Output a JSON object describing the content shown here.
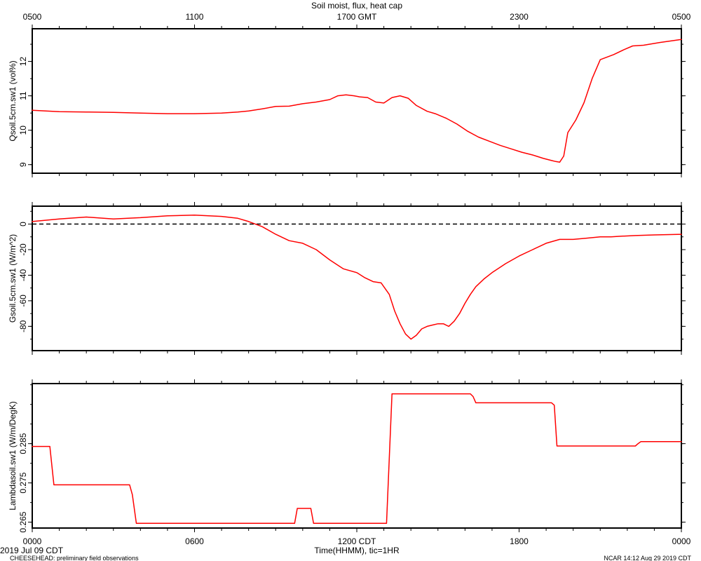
{
  "title": "Soil moist, flux, heat cap",
  "top_axis": {
    "ticks": [
      {
        "t": 0,
        "label": "0500"
      },
      {
        "t": 6,
        "label": "1100"
      },
      {
        "t": 12,
        "label": "1700 GMT"
      },
      {
        "t": 18,
        "label": "2300"
      },
      {
        "t": 24,
        "label": "0500"
      }
    ]
  },
  "bottom_axis": {
    "title": "Time(HHMM), tic=1HR",
    "ticks": [
      {
        "t": 0,
        "label": "0000"
      },
      {
        "t": 6,
        "label": "0600"
      },
      {
        "t": 12,
        "label": "1200 CDT"
      },
      {
        "t": 18,
        "label": "1800"
      },
      {
        "t": 24,
        "label": "0000"
      }
    ]
  },
  "footer": {
    "date": "2019 Jul 09 CDT",
    "project": "CHEESEHEAD: preliminary field observations",
    "credit": "NCAR 14:12 Aug 29 2019 CDT"
  },
  "colors": {
    "series": "#ff0000",
    "axis": "#000000"
  },
  "chart_data": [
    {
      "type": "line",
      "ylabel": "Qsoil.5cm.sw1  (vol%)",
      "xlim": [
        0,
        24
      ],
      "ylim": [
        8.75,
        12.95
      ],
      "yticks": [
        {
          "v": 9,
          "label": "9"
        },
        {
          "v": 10,
          "label": "10"
        },
        {
          "v": 11,
          "label": "11"
        },
        {
          "v": 12,
          "label": "12"
        }
      ],
      "x": [
        0,
        1,
        2,
        3,
        4,
        5,
        6,
        7,
        7.6,
        8,
        8.5,
        9,
        9.5,
        10,
        10.5,
        11,
        11.3,
        11.6,
        11.9,
        12.1,
        12.4,
        12.7,
        13,
        13.3,
        13.6,
        13.9,
        14.2,
        14.6,
        14.9,
        15.3,
        15.7,
        16.1,
        16.5,
        16.9,
        17.3,
        17.7,
        18.1,
        18.5,
        18.9,
        19.2,
        19.35,
        19.5,
        19.65,
        19.8,
        20.1,
        20.4,
        20.7,
        21.0,
        21.5,
        21.9,
        22.2,
        22.6,
        23.2,
        24
      ],
      "values": [
        10.58,
        10.54,
        10.53,
        10.52,
        10.5,
        10.48,
        10.48,
        10.5,
        10.53,
        10.56,
        10.62,
        10.69,
        10.7,
        10.77,
        10.82,
        10.89,
        11.0,
        11.03,
        11.0,
        10.97,
        10.95,
        10.82,
        10.79,
        10.95,
        11.0,
        10.93,
        10.72,
        10.55,
        10.48,
        10.35,
        10.18,
        9.97,
        9.8,
        9.68,
        9.56,
        9.46,
        9.36,
        9.28,
        9.18,
        9.12,
        9.09,
        9.07,
        9.25,
        9.93,
        10.3,
        10.8,
        11.5,
        12.05,
        12.2,
        12.35,
        12.45,
        12.47,
        12.55,
        12.64
      ]
    },
    {
      "type": "line",
      "ylabel": "Gsoil.5cm.sw1  (W/m^2)",
      "xlim": [
        0,
        24
      ],
      "ylim": [
        -99,
        14
      ],
      "zero_line": true,
      "yticks": [
        {
          "v": 0,
          "label": "0"
        },
        {
          "v": -20,
          "label": "-20"
        },
        {
          "v": -40,
          "label": "-40"
        },
        {
          "v": -60,
          "label": "-60"
        },
        {
          "v": -80,
          "label": "-80"
        }
      ],
      "x": [
        0,
        1,
        2,
        3,
        4,
        5,
        6,
        7,
        7.6,
        8,
        8.5,
        9,
        9.5,
        10,
        10.5,
        11,
        11.5,
        12,
        12.3,
        12.6,
        12.9,
        13.2,
        13.4,
        13.6,
        13.8,
        14.0,
        14.2,
        14.4,
        14.6,
        14.8,
        15.0,
        15.2,
        15.4,
        15.6,
        15.8,
        16.0,
        16.2,
        16.4,
        16.7,
        17.0,
        17.5,
        18.0,
        18.5,
        19.0,
        19.5,
        20.0,
        20.5,
        21.0,
        21.4,
        21.8,
        22.3,
        23.0,
        24
      ],
      "values": [
        2,
        4,
        5.5,
        4,
        5,
        6.5,
        7,
        6,
        4.5,
        2,
        -2,
        -8,
        -13,
        -15,
        -20,
        -28,
        -35,
        -38,
        -42,
        -45,
        -46,
        -55,
        -68,
        -78,
        -86,
        -90,
        -87,
        -82,
        -80,
        -79,
        -78,
        -78,
        -80,
        -76,
        -70,
        -62,
        -55,
        -49,
        -43,
        -38,
        -31,
        -25,
        -20,
        -15,
        -12,
        -12,
        -11,
        -10,
        -10,
        -9.5,
        -9,
        -8.5,
        -8
      ]
    },
    {
      "type": "line",
      "ylabel": "Lambdasoil.sw1  (W/m/DegK)",
      "xlim": [
        0,
        24
      ],
      "ylim": [
        0.2635,
        0.3003
      ],
      "yticks": [
        {
          "v": 0.265,
          "label": "0.265"
        },
        {
          "v": 0.275,
          "label": "0.275"
        },
        {
          "v": 0.285,
          "label": "0.285"
        }
      ],
      "x": [
        0,
        0.65,
        0.8,
        3.6,
        3.7,
        3.85,
        9.7,
        9.8,
        10.3,
        10.4,
        13.1,
        13.3,
        16.2,
        16.3,
        16.4,
        19.2,
        19.3,
        19.4,
        22.3,
        22.4,
        22.5,
        24
      ],
      "values": [
        0.2843,
        0.2843,
        0.2745,
        0.2745,
        0.272,
        0.2647,
        0.2647,
        0.2685,
        0.2685,
        0.2647,
        0.2647,
        0.2977,
        0.2977,
        0.297,
        0.2954,
        0.2954,
        0.2948,
        0.2844,
        0.2844,
        0.285,
        0.2855,
        0.2855
      ]
    }
  ]
}
